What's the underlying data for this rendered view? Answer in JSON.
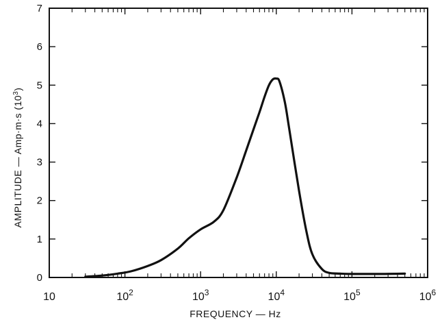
{
  "chart_data": {
    "type": "line",
    "title": "",
    "xlabel": "FREQUENCY — Hz",
    "ylabel": "AMPLITUDE — Amp·m·s (10",
    "ylabel_superscript": "3",
    "ylabel_suffix": ")",
    "x_scale": "log",
    "xlim": [
      10,
      1000000
    ],
    "ylim": [
      0,
      7
    ],
    "grid": false,
    "x_ticks": [
      {
        "value": 10,
        "base": "10",
        "exp": ""
      },
      {
        "value": 100,
        "base": "10",
        "exp": "2"
      },
      {
        "value": 1000,
        "base": "10",
        "exp": "3"
      },
      {
        "value": 10000,
        "base": "10",
        "exp": "4"
      },
      {
        "value": 100000,
        "base": "10",
        "exp": "5"
      },
      {
        "value": 1000000,
        "base": "10",
        "exp": "6"
      }
    ],
    "y_ticks": [
      "0",
      "1",
      "2",
      "3",
      "4",
      "5",
      "6",
      "7"
    ],
    "series": [
      {
        "x": [
          30,
          50,
          80,
          120,
          200,
          300,
          500,
          700,
          1000,
          1500,
          2000,
          3000,
          4000,
          5000,
          6000,
          7000,
          8000,
          9000,
          10000,
          11000,
          13000,
          15000,
          20000,
          25000,
          30000,
          40000,
          50000,
          70000,
          100000,
          200000,
          500000
        ],
        "y": [
          0.02,
          0.05,
          0.1,
          0.16,
          0.3,
          0.45,
          0.75,
          1.02,
          1.25,
          1.45,
          1.75,
          2.6,
          3.3,
          3.85,
          4.3,
          4.7,
          5.0,
          5.15,
          5.17,
          5.1,
          4.55,
          3.8,
          2.25,
          1.2,
          0.6,
          0.22,
          0.12,
          0.1,
          0.09,
          0.09,
          0.1
        ]
      }
    ]
  }
}
